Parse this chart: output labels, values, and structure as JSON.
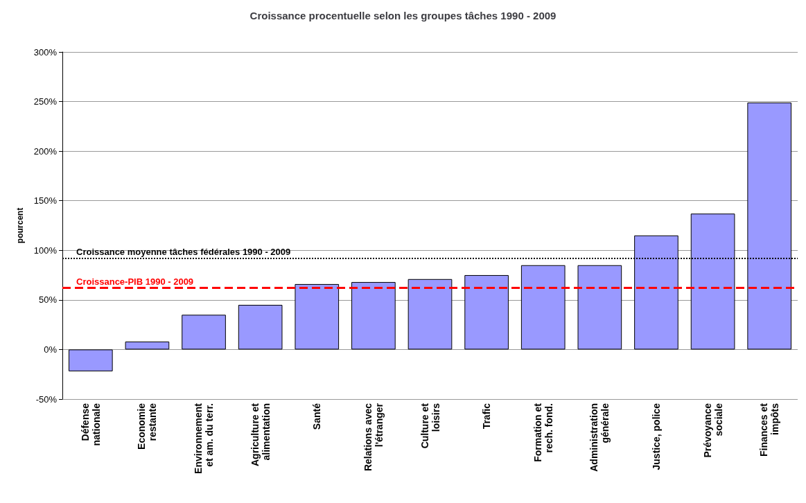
{
  "chart_data": {
    "type": "bar",
    "title": "Croissance procentuelle selon les groupes tâches 1990 - 2009",
    "ylabel": "pourcent",
    "categories": [
      "Défense\nnationale",
      "Economie\nrestante",
      "Environnement\net am. du terr.",
      "Agriculture et\nalimentation",
      "Santé",
      "Relations avec\nl'étranger",
      "Culture et\nloisirs",
      "Trafic",
      "Formation et\nrech. fond.",
      "Administration\ngénérale",
      "Justice, police",
      "Prévoyance\nsociale",
      "Finances et\nimpôts"
    ],
    "values": [
      -22,
      8,
      35,
      45,
      66,
      68,
      71,
      75,
      85,
      85,
      115,
      137,
      249
    ],
    "color": "#9999ff",
    "ylim": [
      -50,
      300
    ],
    "yticks": [
      {
        "value": -50,
        "label": "-50%"
      },
      {
        "value": 0,
        "label": "0%"
      },
      {
        "value": 50,
        "label": "50%"
      },
      {
        "value": 100,
        "label": "100%"
      },
      {
        "value": 150,
        "label": "150%"
      },
      {
        "value": 200,
        "label": "200%"
      },
      {
        "value": 250,
        "label": "250%"
      },
      {
        "value": 300,
        "label": "300%"
      }
    ],
    "grid": "y",
    "ref_lines": [
      {
        "axis": "y",
        "value": 92,
        "label": "Croissance moyenne tâches fédérales 1990 - 2009",
        "color": "#000000",
        "line_style": "dotted"
      },
      {
        "axis": "y",
        "value": 62,
        "label": "Croissance-PIB 1990 - 2009",
        "color": "#ff0000",
        "line_style": "dashed"
      }
    ]
  }
}
